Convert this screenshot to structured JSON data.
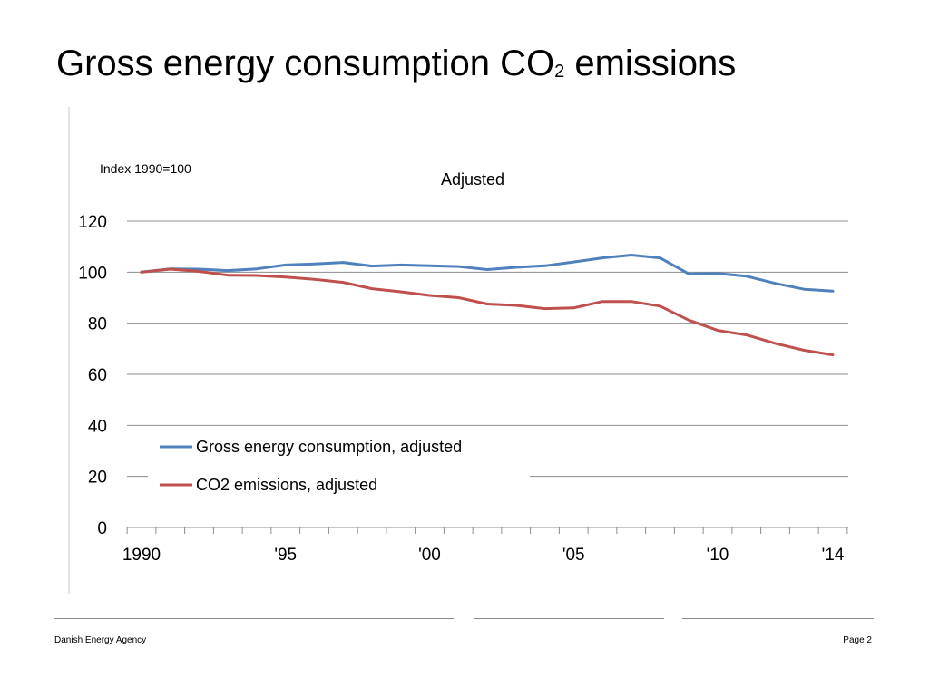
{
  "slide": {
    "title_main": "Gross energy consumption CO",
    "title_sub": "2",
    "title_end": " emissions",
    "footer_left": "Danish Energy Agency",
    "footer_right": "Page 2"
  },
  "colors": {
    "series1": "#4f81bd",
    "series2": "#c0504d",
    "grid": "#8c8c8c"
  },
  "chart_data": {
    "type": "line",
    "title": "Adjusted",
    "ylabel": "Index 1990=100",
    "xlabel": "",
    "ylim": [
      0,
      120
    ],
    "yticks": [
      0,
      20,
      40,
      60,
      80,
      100,
      120
    ],
    "x": [
      1990,
      1991,
      1992,
      1993,
      1994,
      1995,
      1996,
      1997,
      1998,
      1999,
      2000,
      2001,
      2002,
      2003,
      2004,
      2005,
      2006,
      2007,
      2008,
      2009,
      2010,
      2011,
      2012,
      2013,
      2014
    ],
    "xtick_labels": [
      "1990",
      "'95",
      "'00",
      "'05",
      "'10",
      "'14"
    ],
    "legend_position": "lower-left",
    "series": [
      {
        "name": "Gross energy consumption, adjusted",
        "values": [
          100.0,
          101.3,
          101.2,
          100.6,
          101.3,
          102.8,
          103.2,
          103.8,
          102.4,
          102.8,
          102.5,
          102.2,
          101.0,
          101.9,
          102.5,
          104.0,
          105.6,
          106.7,
          105.6,
          99.3,
          99.5,
          98.4,
          95.6,
          93.3,
          92.6
        ]
      },
      {
        "name": "CO2 emissions, adjusted",
        "values": [
          100.0,
          101.2,
          100.3,
          98.8,
          98.7,
          98.1,
          97.2,
          96.0,
          93.5,
          92.3,
          90.9,
          90.0,
          87.5,
          87.0,
          85.7,
          86.0,
          88.5,
          88.5,
          86.7,
          81.2,
          77.2,
          75.4,
          72.1,
          69.4,
          67.6
        ]
      }
    ]
  }
}
